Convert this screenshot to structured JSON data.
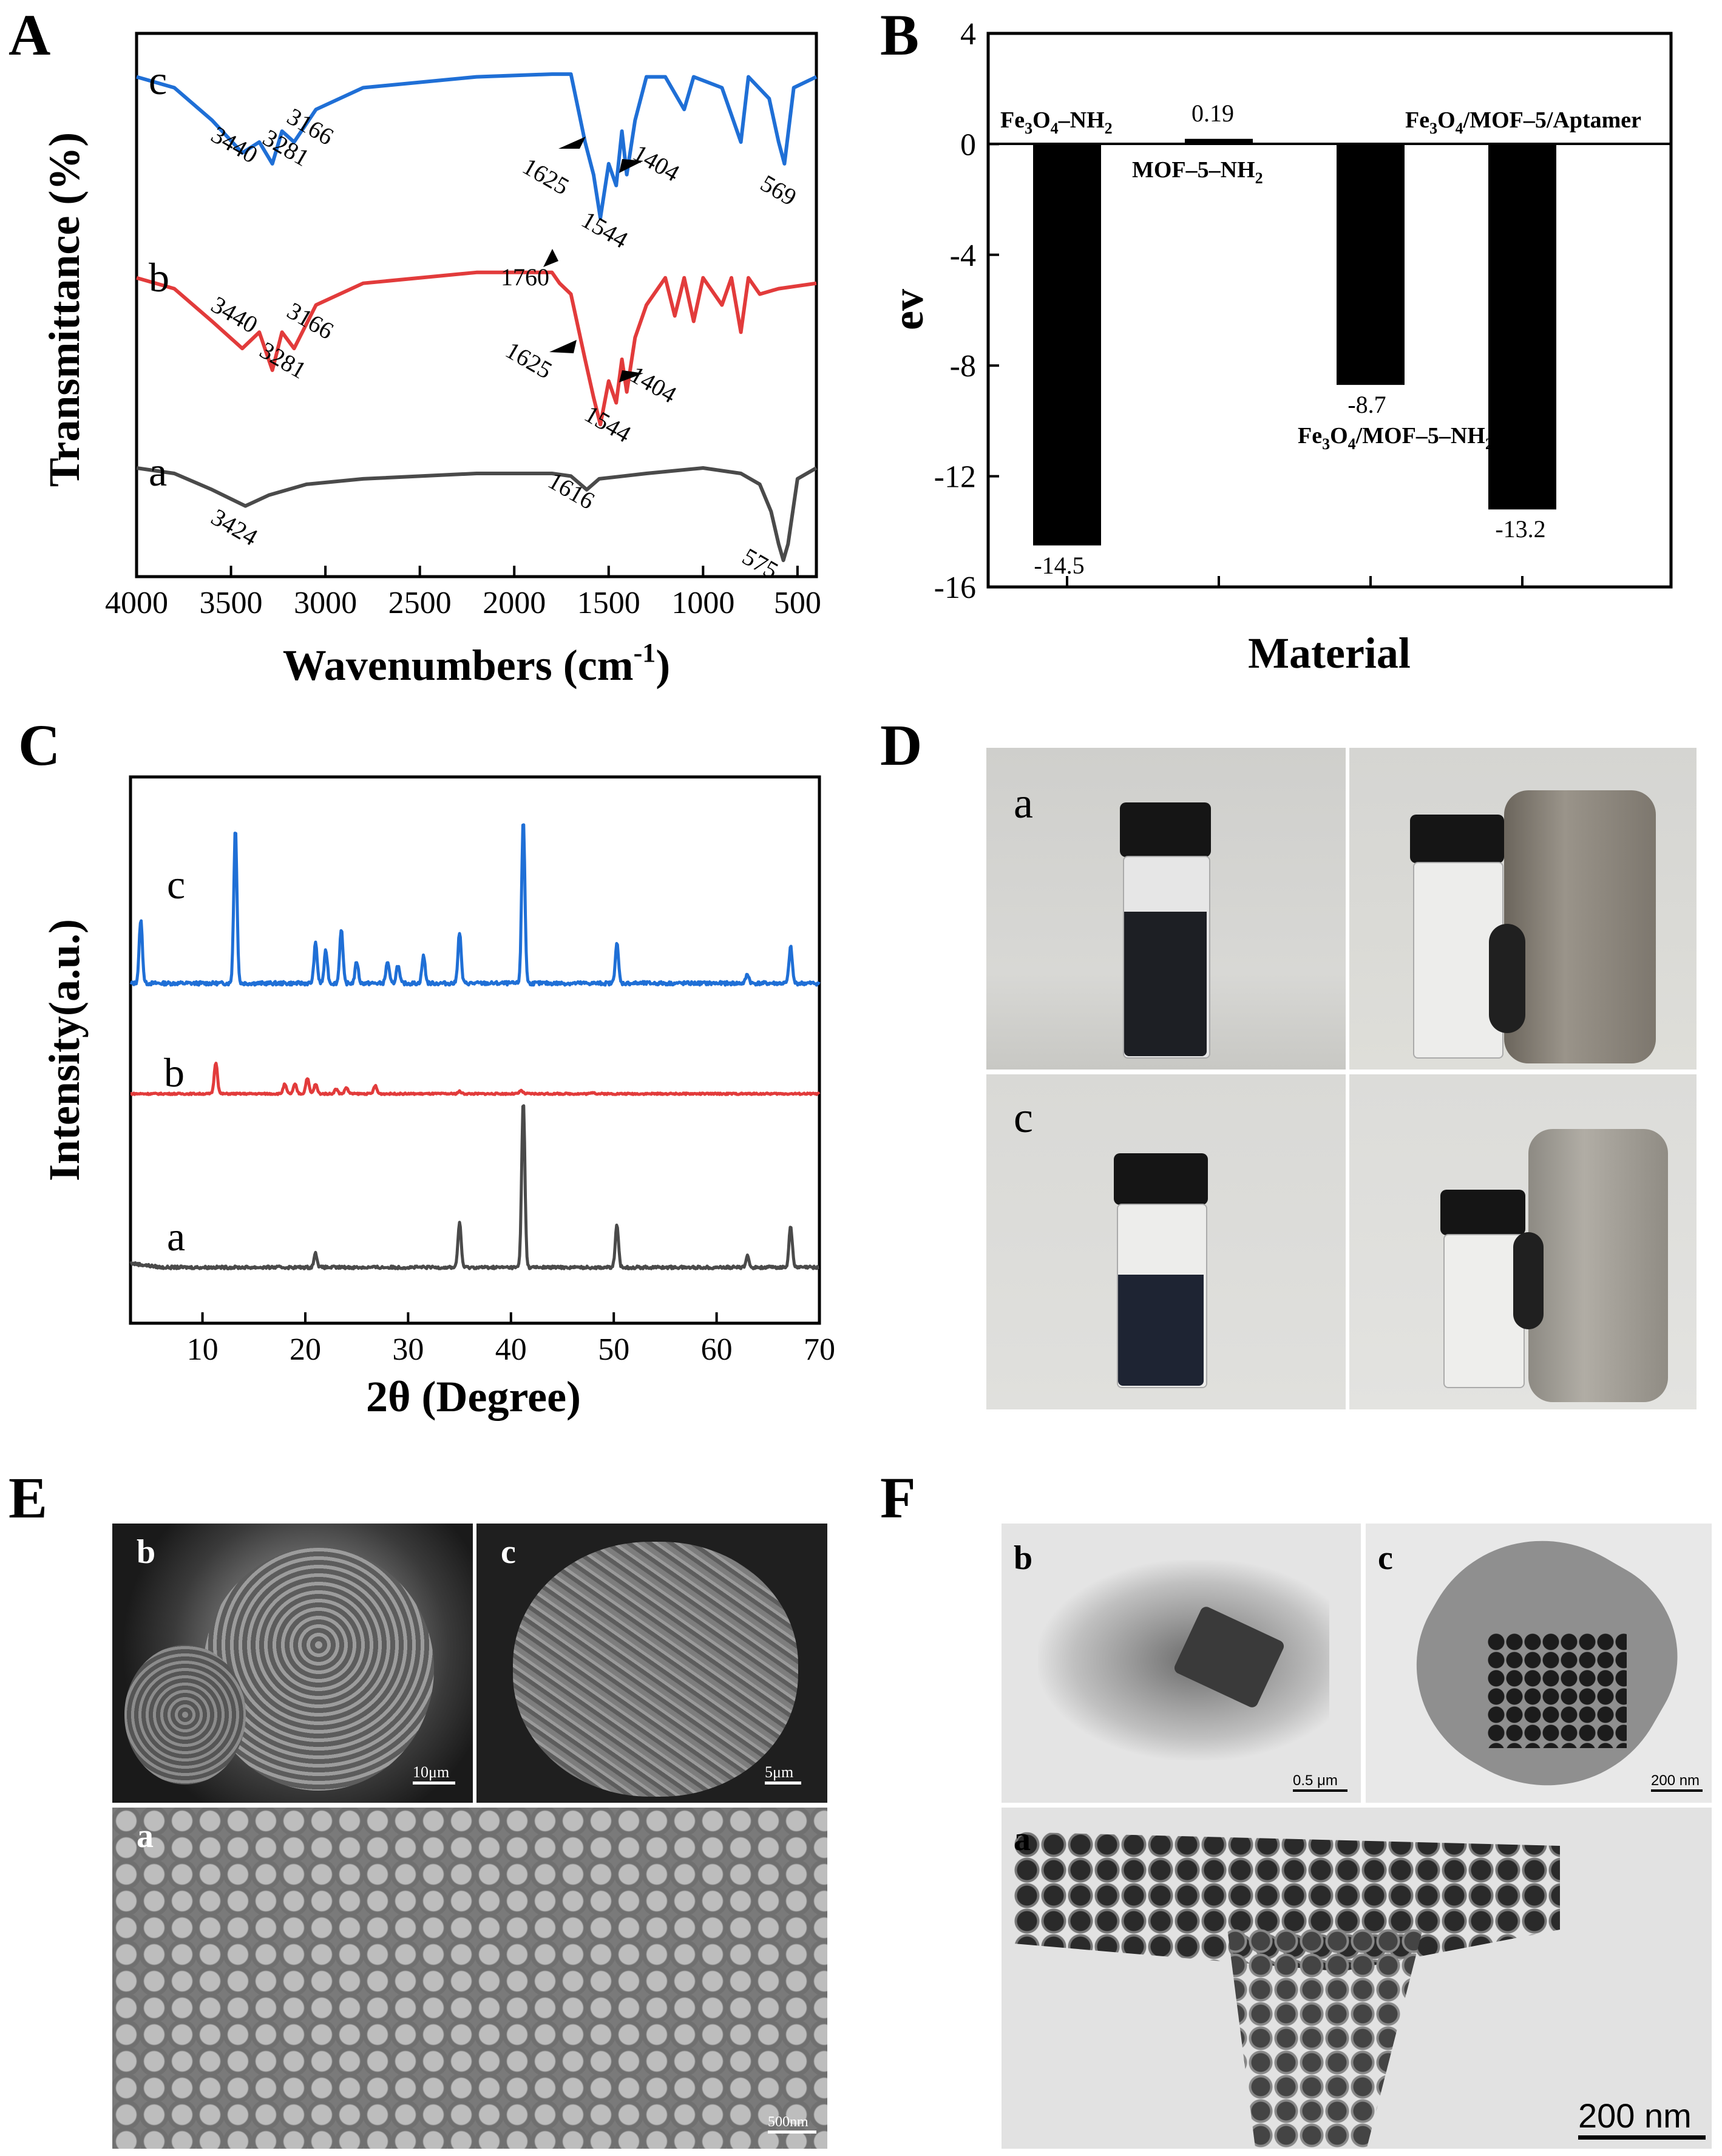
{
  "panels": {
    "A": "A",
    "B": "B",
    "C": "C",
    "D": "D",
    "E": "E",
    "F": "F"
  },
  "chart_data": [
    {
      "panel": "A",
      "type": "line",
      "xlabel": "Wavenumbers (cm",
      "xlabel_sup": "-1",
      "xlabel_close": ")",
      "ylabel": "Transmittance (%)",
      "xlim": [
        4000,
        400
      ],
      "x_ticks": [
        4000,
        3500,
        3000,
        2500,
        2000,
        1500,
        1000,
        500
      ],
      "series": [
        {
          "name": "c",
          "color": "#1f6fd6",
          "offset": 0.92,
          "points": [
            [
              4000,
              0.92
            ],
            [
              3800,
              0.9
            ],
            [
              3600,
              0.84
            ],
            [
              3440,
              0.78
            ],
            [
              3350,
              0.8
            ],
            [
              3281,
              0.76
            ],
            [
              3230,
              0.82
            ],
            [
              3166,
              0.8
            ],
            [
              3050,
              0.86
            ],
            [
              2800,
              0.9
            ],
            [
              2200,
              0.92
            ],
            [
              1800,
              0.925
            ],
            [
              1700,
              0.925
            ],
            [
              1625,
              0.8
            ],
            [
              1580,
              0.74
            ],
            [
              1544,
              0.66
            ],
            [
              1500,
              0.76
            ],
            [
              1460,
              0.72
            ],
            [
              1430,
              0.82
            ],
            [
              1404,
              0.74
            ],
            [
              1360,
              0.84
            ],
            [
              1300,
              0.92
            ],
            [
              1200,
              0.92
            ],
            [
              1100,
              0.86
            ],
            [
              1050,
              0.92
            ],
            [
              900,
              0.9
            ],
            [
              800,
              0.8
            ],
            [
              760,
              0.92
            ],
            [
              650,
              0.88
            ],
            [
              600,
              0.8
            ],
            [
              569,
              0.76
            ],
            [
              520,
              0.9
            ],
            [
              400,
              0.92
            ]
          ]
        },
        {
          "name": "b",
          "color": "#e23b3b",
          "offset": 0.55,
          "points": [
            [
              4000,
              0.55
            ],
            [
              3800,
              0.53
            ],
            [
              3600,
              0.47
            ],
            [
              3440,
              0.42
            ],
            [
              3350,
              0.45
            ],
            [
              3281,
              0.38
            ],
            [
              3230,
              0.45
            ],
            [
              3166,
              0.42
            ],
            [
              3050,
              0.5
            ],
            [
              2800,
              0.54
            ],
            [
              2200,
              0.56
            ],
            [
              1800,
              0.56
            ],
            [
              1760,
              0.54
            ],
            [
              1700,
              0.52
            ],
            [
              1625,
              0.4
            ],
            [
              1580,
              0.33
            ],
            [
              1544,
              0.28
            ],
            [
              1500,
              0.36
            ],
            [
              1460,
              0.32
            ],
            [
              1430,
              0.4
            ],
            [
              1404,
              0.34
            ],
            [
              1360,
              0.44
            ],
            [
              1300,
              0.5
            ],
            [
              1200,
              0.55
            ],
            [
              1150,
              0.48
            ],
            [
              1100,
              0.55
            ],
            [
              1050,
              0.47
            ],
            [
              1000,
              0.55
            ],
            [
              900,
              0.5
            ],
            [
              850,
              0.55
            ],
            [
              800,
              0.45
            ],
            [
              760,
              0.55
            ],
            [
              700,
              0.52
            ],
            [
              600,
              0.53
            ],
            [
              400,
              0.54
            ]
          ]
        },
        {
          "name": "a",
          "color": "#4a4a4a",
          "offset": 0.2,
          "points": [
            [
              4000,
              0.2
            ],
            [
              3800,
              0.19
            ],
            [
              3600,
              0.16
            ],
            [
              3424,
              0.13
            ],
            [
              3300,
              0.15
            ],
            [
              3100,
              0.17
            ],
            [
              2800,
              0.18
            ],
            [
              2200,
              0.19
            ],
            [
              1800,
              0.19
            ],
            [
              1700,
              0.185
            ],
            [
              1616,
              0.16
            ],
            [
              1550,
              0.18
            ],
            [
              1300,
              0.19
            ],
            [
              1000,
              0.2
            ],
            [
              800,
              0.19
            ],
            [
              700,
              0.17
            ],
            [
              640,
              0.12
            ],
            [
              600,
              0.06
            ],
            [
              575,
              0.03
            ],
            [
              550,
              0.06
            ],
            [
              500,
              0.18
            ],
            [
              400,
              0.2
            ]
          ]
        }
      ],
      "series_labels": [
        "c",
        "b",
        "a"
      ],
      "annotations": {
        "c": [
          "3440",
          "3281",
          "3166",
          "1625",
          "1404",
          "1544",
          "569"
        ],
        "b": [
          "3440",
          "3281",
          "3166",
          "1760",
          "1625",
          "1404",
          "1544"
        ],
        "a": [
          "3424",
          "1616",
          "575"
        ]
      }
    },
    {
      "panel": "B",
      "type": "bar",
      "xlabel": "Material",
      "ylabel": "ev",
      "ylim": [
        -16,
        4
      ],
      "y_ticks": [
        4,
        0,
        -4,
        -8,
        -12,
        -16
      ],
      "categories": [
        "Fe3O4–NH2",
        "MOF–5–NH2",
        "Fe3O4/MOF–5–NH2",
        "Fe3O4/MOF–5/Aptamer"
      ],
      "values": [
        -14.5,
        0.19,
        -8.7,
        -13.2
      ],
      "value_labels": [
        "-14.5",
        "0.19",
        "-8.7",
        "-13.2"
      ],
      "category_labels": {
        "fe3o4_nh2": {
          "a": "Fe",
          "sub1": "3",
          "b": "O",
          "sub2": "4",
          "c": "–NH",
          "sub3": "2"
        },
        "mof5_nh2": {
          "a": "MOF–5–NH",
          "sub1": "2"
        },
        "fe3o4_mof5_nh2": {
          "a": "Fe",
          "sub1": "3",
          "b": "O",
          "sub2": "4",
          "c": "/MOF–5–NH",
          "sub3": "2"
        },
        "fe3o4_mof5_apt": {
          "a": "Fe",
          "sub1": "3",
          "b": "O",
          "sub2": "4",
          "c": "/MOF–5/Aptamer"
        }
      },
      "color": "#000000"
    },
    {
      "panel": "C",
      "type": "line",
      "xlabel": "2θ (Degree)",
      "ylabel": "Intensity(a.u.)",
      "xlim": [
        3,
        70
      ],
      "x_ticks": [
        10,
        20,
        30,
        40,
        50,
        60,
        70
      ],
      "series_labels": [
        "c",
        "b",
        "a"
      ],
      "series": [
        {
          "name": "c",
          "color": "#1f6fd6",
          "peaks": [
            [
              4,
              0.35
            ],
            [
              13.2,
              0.85
            ],
            [
              21,
              0.22
            ],
            [
              22,
              0.18
            ],
            [
              23.5,
              0.3
            ],
            [
              25,
              0.12
            ],
            [
              28,
              0.12
            ],
            [
              29,
              0.1
            ],
            [
              31.5,
              0.15
            ],
            [
              35,
              0.28
            ],
            [
              41.2,
              0.9
            ],
            [
              50.3,
              0.22
            ],
            [
              63,
              0.05
            ],
            [
              67.2,
              0.2
            ]
          ]
        },
        {
          "name": "b",
          "color": "#e23b3b",
          "peaks": [
            [
              11.3,
              0.4
            ],
            [
              18,
              0.12
            ],
            [
              19,
              0.12
            ],
            [
              20.2,
              0.2
            ],
            [
              21,
              0.12
            ],
            [
              23,
              0.06
            ],
            [
              24,
              0.08
            ],
            [
              26.8,
              0.1
            ],
            [
              35,
              0.03
            ],
            [
              41,
              0.04
            ],
            [
              48,
              0.02
            ]
          ]
        },
        {
          "name": "a",
          "color": "#4a4a4a",
          "peaks": [
            [
              21,
              0.1
            ],
            [
              35,
              0.32
            ],
            [
              41.2,
              1.2
            ],
            [
              50.3,
              0.3
            ],
            [
              63,
              0.08
            ],
            [
              67.2,
              0.3
            ]
          ]
        }
      ]
    }
  ],
  "panel_D": {
    "labels": [
      "a",
      "c"
    ]
  },
  "panel_E": {
    "labels": [
      "b",
      "c",
      "a"
    ],
    "scales": [
      "10μm",
      "5μm",
      "500nm"
    ]
  },
  "panel_F": {
    "labels": [
      "b",
      "c",
      "a"
    ],
    "scales": [
      "0.5 μm",
      "200 nm",
      "200 nm"
    ]
  }
}
